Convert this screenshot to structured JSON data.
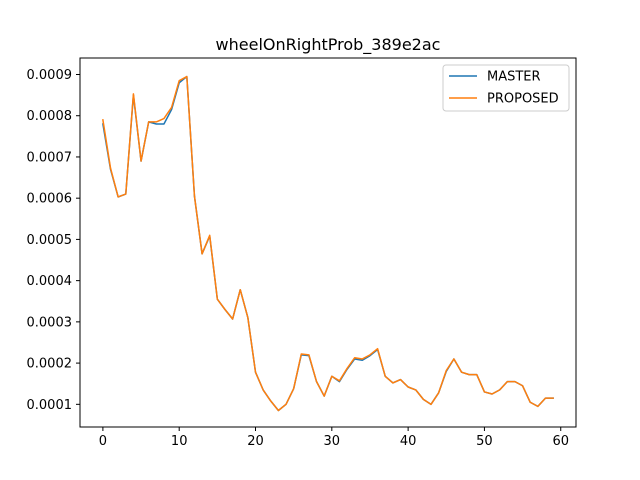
{
  "chart_data": {
    "type": "line",
    "title": "wheelOnRightProb_389e2ac",
    "xlabel": "",
    "ylabel": "",
    "xlim": [
      -3,
      62
    ],
    "ylim": [
      4.5e-05,
      0.00094
    ],
    "xticks": [
      0,
      10,
      20,
      30,
      40,
      50,
      60
    ],
    "xtick_labels": [
      "0",
      "10",
      "20",
      "30",
      "40",
      "50",
      "60"
    ],
    "yticks": [
      0.0001,
      0.0002,
      0.0003,
      0.0004,
      0.0005,
      0.0006,
      0.0007,
      0.0008,
      0.0009
    ],
    "ytick_labels": [
      "0.0001",
      "0.0002",
      "0.0003",
      "0.0004",
      "0.0005",
      "0.0006",
      "0.0007",
      "0.0008",
      "0.0009"
    ],
    "grid": false,
    "legend_position": "top-right",
    "x": [
      0,
      1,
      2,
      3,
      4,
      5,
      6,
      7,
      8,
      9,
      10,
      11,
      12,
      13,
      14,
      15,
      16,
      17,
      18,
      19,
      20,
      21,
      22,
      23,
      24,
      25,
      26,
      27,
      28,
      29,
      30,
      31,
      32,
      33,
      34,
      35,
      36,
      37,
      38,
      39,
      40,
      41,
      42,
      43,
      44,
      45,
      46,
      47,
      48,
      49,
      50,
      51,
      52,
      53,
      54,
      55,
      56,
      57,
      58,
      59
    ],
    "series": [
      {
        "name": "MASTER",
        "color": "#1f77b4",
        "values": [
          0.00078,
          0.00067,
          0.000603,
          0.00061,
          0.00085,
          0.00069,
          0.000785,
          0.00078,
          0.00078,
          0.000815,
          0.00088,
          0.000895,
          0.000605,
          0.000465,
          0.000508,
          0.000355,
          0.00033,
          0.000307,
          0.000378,
          0.00031,
          0.000178,
          0.000135,
          0.000108,
          8.5e-05,
          0.0001,
          0.000138,
          0.00022,
          0.000218,
          0.000155,
          0.00012,
          0.000168,
          0.000155,
          0.000185,
          0.00021,
          0.000207,
          0.000218,
          0.000233,
          0.000168,
          0.000152,
          0.00016,
          0.000142,
          0.000135,
          0.000112,
          0.0001,
          0.000128,
          0.00018,
          0.00021,
          0.000178,
          0.000172,
          0.000172,
          0.00013,
          0.000125,
          0.000135,
          0.000155,
          0.000155,
          0.000145,
          0.000105,
          9.5e-05,
          0.000115,
          0.000115
        ]
      },
      {
        "name": "PROPOSED",
        "color": "#ff7f0e",
        "values": [
          0.00079,
          0.000673,
          0.000603,
          0.00061,
          0.000853,
          0.00069,
          0.000785,
          0.000785,
          0.000793,
          0.00082,
          0.000885,
          0.000895,
          0.000605,
          0.000465,
          0.00051,
          0.000355,
          0.00033,
          0.000307,
          0.000378,
          0.00031,
          0.000178,
          0.000135,
          0.000108,
          8.5e-05,
          0.0001,
          0.000138,
          0.000222,
          0.00022,
          0.000155,
          0.00012,
          0.000168,
          0.000157,
          0.000187,
          0.000213,
          0.00021,
          0.00022,
          0.000235,
          0.000168,
          0.000152,
          0.00016,
          0.000142,
          0.000135,
          0.000112,
          0.0001,
          0.000128,
          0.000182,
          0.00021,
          0.000178,
          0.000172,
          0.000172,
          0.00013,
          0.000125,
          0.000135,
          0.000155,
          0.000155,
          0.000145,
          0.000105,
          9.5e-05,
          0.000115,
          0.000115
        ]
      }
    ]
  }
}
